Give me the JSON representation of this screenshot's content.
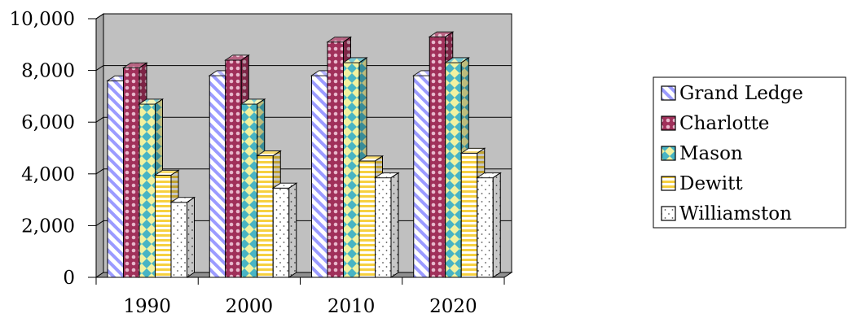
{
  "chart_data": {
    "type": "bar",
    "title": "",
    "xlabel": "",
    "ylabel": "",
    "categories": [
      "1990",
      "2000",
      "2010",
      "2020"
    ],
    "ylim": [
      0,
      10000
    ],
    "yticks": [
      "0",
      "2,000",
      "4,000",
      "6,000",
      "8,000",
      "10,000"
    ],
    "grid": true,
    "legend_position": "right",
    "series": [
      {
        "name": "Grand Ledge",
        "values": [
          7600,
          7800,
          7800,
          7800
        ],
        "color": "#9b9bff",
        "pattern": "diagonal-stripes"
      },
      {
        "name": "Charlotte",
        "values": [
          8100,
          8400,
          9100,
          9300
        ],
        "color": "#a0305a",
        "pattern": "dots"
      },
      {
        "name": "Mason",
        "values": [
          6700,
          6700,
          8300,
          8300
        ],
        "color": "#48b4c4",
        "pattern": "diamonds"
      },
      {
        "name": "Dewitt",
        "values": [
          3950,
          4700,
          4500,
          4800
        ],
        "color": "#f6d040",
        "pattern": "horizontal-stripes"
      },
      {
        "name": "Williamston",
        "values": [
          2900,
          3450,
          3850,
          3850
        ],
        "color": "#ffffff",
        "pattern": "speckles"
      }
    ]
  }
}
